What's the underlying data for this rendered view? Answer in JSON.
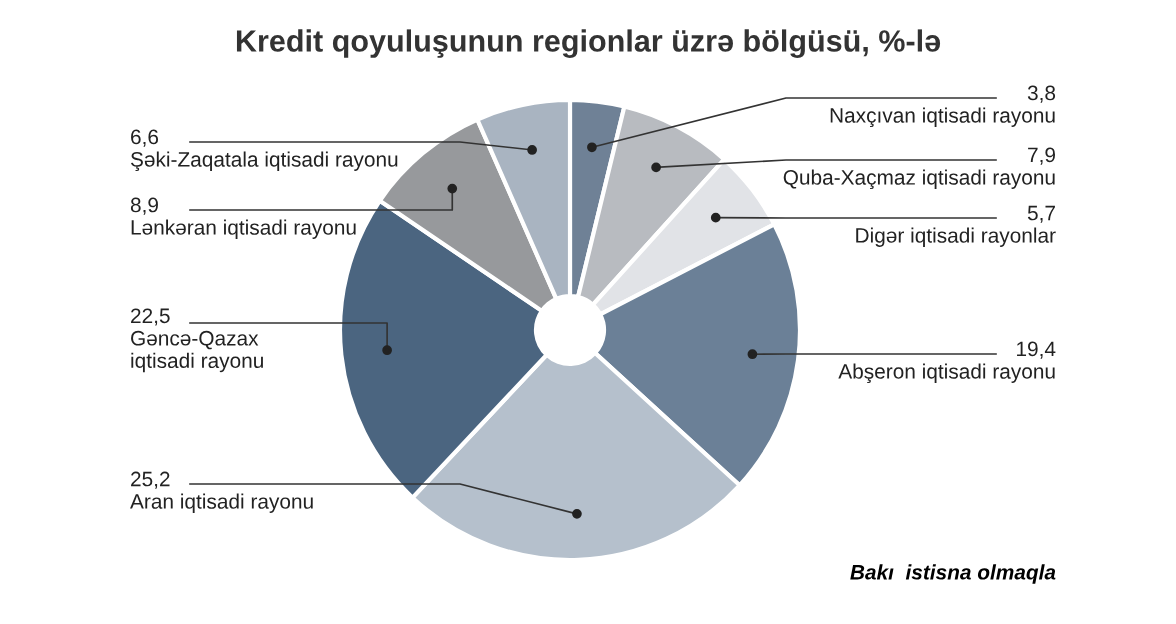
{
  "chart_data": {
    "type": "donut",
    "title": "Kredit qoyuluşunun regionlar üzrə bölgüsü, %-lə",
    "categories": [
      "Naxçıvan iqtisadi rayonu",
      "Quba-Xaçmaz iqtisadi rayonu",
      "Digər iqtisadi rayonlar",
      "Abşeron iqtisadi rayonu",
      "Aran iqtisadi rayonu",
      "Gəncə-Qazax\niqtisadi rayonu",
      "Lənkəran iqtisadi rayonu",
      "Şəki-Zaqatala iqtisadi rayonu"
    ],
    "values": [
      3.8,
      7.9,
      5.7,
      19.4,
      25.2,
      22.5,
      8.9,
      6.6
    ],
    "value_labels": [
      "3,8",
      "7,9",
      "5,7",
      "19,4",
      "25,2",
      "22,5",
      "8,9",
      "6,6"
    ],
    "colors": [
      "#6f8196",
      "#b8bbc0",
      "#e1e3e7",
      "#6b8097",
      "#b5c0cc",
      "#4b6580",
      "#97999c",
      "#a9b4c1"
    ],
    "legend": false,
    "annotations": [
      "Bakı  istisna olmaqla"
    ]
  }
}
